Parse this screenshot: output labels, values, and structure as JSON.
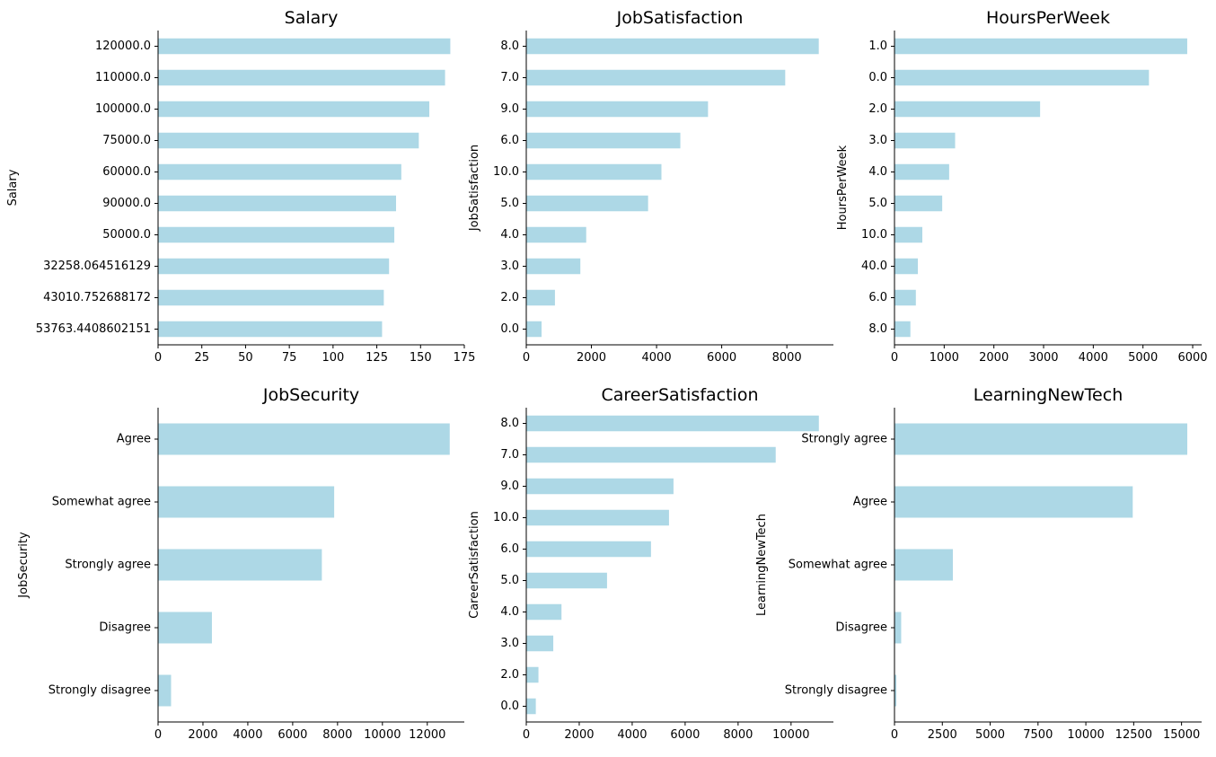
{
  "chart_data": [
    {
      "type": "bar",
      "orientation": "horizontal",
      "title": "Salary",
      "ylabel": "Salary",
      "xlabel": "",
      "categories": [
        "120000.0",
        "110000.0",
        "100000.0",
        "75000.0",
        "60000.0",
        "90000.0",
        "50000.0",
        "32258.064516129",
        "43010.752688172",
        "53763.4408602151"
      ],
      "values": [
        167,
        164,
        155,
        149,
        139,
        136,
        135,
        132,
        129,
        128
      ],
      "xlim": [
        0,
        175
      ],
      "xticks": [
        "0",
        "25",
        "50",
        "75",
        "100",
        "125",
        "150",
        "175"
      ],
      "bar_color": "#add8e6"
    },
    {
      "type": "bar",
      "orientation": "horizontal",
      "title": "JobSatisfaction",
      "ylabel": "JobSatisfaction",
      "xlabel": "",
      "categories": [
        "8.0",
        "7.0",
        "9.0",
        "6.0",
        "10.0",
        "5.0",
        "4.0",
        "3.0",
        "2.0",
        "0.0"
      ],
      "values": [
        8980,
        7950,
        5580,
        4730,
        4150,
        3740,
        1840,
        1660,
        880,
        470
      ],
      "xlim": [
        0,
        9430
      ],
      "xticks": [
        "0",
        "2000",
        "4000",
        "6000",
        "8000"
      ],
      "bar_color": "#add8e6"
    },
    {
      "type": "bar",
      "orientation": "horizontal",
      "title": "HoursPerWeek",
      "ylabel": "HoursPerWeek",
      "xlabel": "",
      "categories": [
        "1.0",
        "0.0",
        "2.0",
        "3.0",
        "4.0",
        "5.0",
        "10.0",
        "40.0",
        "6.0",
        "8.0"
      ],
      "values": [
        5890,
        5120,
        2930,
        1220,
        1100,
        960,
        560,
        470,
        430,
        320
      ],
      "xlim": [
        0,
        6180
      ],
      "xticks": [
        "0",
        "1000",
        "2000",
        "3000",
        "4000",
        "5000",
        "6000"
      ],
      "bar_color": "#add8e6"
    },
    {
      "type": "bar",
      "orientation": "horizontal",
      "title": "JobSecurity",
      "ylabel": "JobSecurity",
      "xlabel": "",
      "categories": [
        "Agree",
        "Somewhat agree",
        "Strongly agree",
        "Disagree",
        "Strongly disagree"
      ],
      "values": [
        13000,
        7850,
        7300,
        2400,
        580
      ],
      "xlim": [
        0,
        13650
      ],
      "xticks": [
        "0",
        "2000",
        "4000",
        "6000",
        "8000",
        "10000",
        "12000"
      ],
      "bar_color": "#add8e6"
    },
    {
      "type": "bar",
      "orientation": "horizontal",
      "title": "CareerSatisfaction",
      "ylabel": "CareerSatisfaction",
      "xlabel": "",
      "categories": [
        "8.0",
        "7.0",
        "9.0",
        "10.0",
        "6.0",
        "5.0",
        "4.0",
        "3.0",
        "2.0",
        "0.0"
      ],
      "values": [
        11050,
        9420,
        5560,
        5390,
        4710,
        3050,
        1330,
        1020,
        460,
        360
      ],
      "xlim": [
        0,
        11600
      ],
      "xticks": [
        "0",
        "2000",
        "4000",
        "6000",
        "8000",
        "10000"
      ],
      "bar_color": "#add8e6"
    },
    {
      "type": "bar",
      "orientation": "horizontal",
      "title": "LearningNewTech",
      "ylabel": "LearningNewTech",
      "xlabel": "",
      "categories": [
        "Strongly agree",
        "Agree",
        "Somewhat agree",
        "Disagree",
        "Strongly disagree"
      ],
      "values": [
        15300,
        12450,
        3050,
        350,
        100
      ],
      "xlim": [
        0,
        16050
      ],
      "xticks": [
        "0",
        "2500",
        "5000",
        "7500",
        "10000",
        "12500",
        "15000"
      ],
      "bar_color": "#add8e6"
    }
  ]
}
